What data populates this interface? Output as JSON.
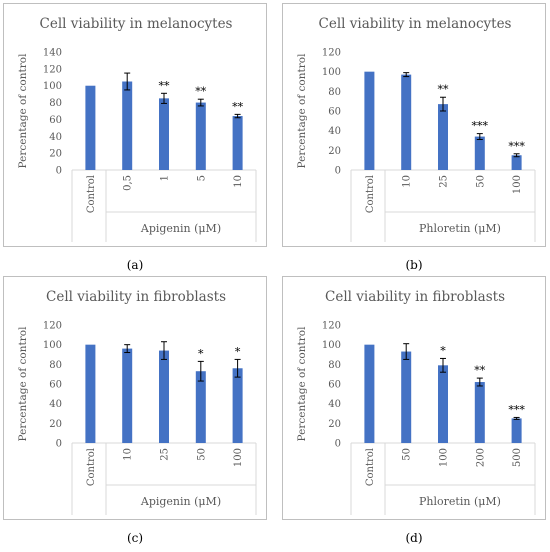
{
  "chart_data": [
    {
      "type": "bar",
      "title": "Cell viability in melanocytes",
      "ylabel": "Percentage of control",
      "xgroup_label": "Apigenin (μM)",
      "control_label": "Control",
      "categories": [
        "Control",
        "0,5",
        "1",
        "5",
        "10"
      ],
      "values": [
        100,
        105,
        85,
        80,
        64
      ],
      "errors": [
        0,
        10,
        6,
        4,
        2
      ],
      "significance": [
        "",
        "",
        "**",
        "**",
        "**"
      ],
      "ylim": [
        0,
        140
      ],
      "yticks": [
        "0",
        "20",
        "40",
        "60",
        "80",
        "100",
        "120",
        "140"
      ],
      "bar_color": "#4472c4",
      "grid": false,
      "caption": "(a)"
    },
    {
      "type": "bar",
      "title": "Cell viability in melanocytes",
      "ylabel": "Percentage of control",
      "xgroup_label": "Phloretin (μM)",
      "control_label": "Control",
      "categories": [
        "Control",
        "10",
        "25",
        "50",
        "100"
      ],
      "values": [
        100,
        97,
        67,
        34,
        15
      ],
      "errors": [
        0,
        2,
        7,
        3,
        1.5
      ],
      "significance": [
        "",
        "",
        "**",
        "***",
        "***"
      ],
      "ylim": [
        0,
        120
      ],
      "yticks": [
        "0",
        "20",
        "40",
        "60",
        "80",
        "100",
        "120"
      ],
      "bar_color": "#4472c4",
      "grid": false,
      "caption": "(b)"
    },
    {
      "type": "bar",
      "title": "Cell viability in fibroblasts",
      "ylabel": "Percentage of control",
      "xgroup_label": "Apigenin (μM)",
      "control_label": "Control",
      "categories": [
        "Control",
        "10",
        "25",
        "50",
        "100"
      ],
      "values": [
        100,
        96,
        94,
        73,
        76
      ],
      "errors": [
        0,
        4,
        9,
        10,
        9
      ],
      "significance": [
        "",
        "",
        "",
        "*",
        "*"
      ],
      "ylim": [
        0,
        120
      ],
      "yticks": [
        "0",
        "20",
        "40",
        "60",
        "80",
        "100",
        "120"
      ],
      "bar_color": "#4472c4",
      "grid": false,
      "caption": "(c)"
    },
    {
      "type": "bar",
      "title": "Cell viability in fibroblasts",
      "ylabel": "Percentage of control",
      "xgroup_label": "Phloretin (μM)",
      "control_label": "Control",
      "categories": [
        "Control",
        "50",
        "100",
        "200",
        "500"
      ],
      "values": [
        100,
        93,
        79,
        62,
        25
      ],
      "errors": [
        0,
        8,
        7,
        4,
        1
      ],
      "significance": [
        "",
        "",
        "*",
        "**",
        "***"
      ],
      "ylim": [
        0,
        120
      ],
      "yticks": [
        "0",
        "20",
        "40",
        "60",
        "80",
        "100",
        "120"
      ],
      "bar_color": "#4472c4",
      "grid": false,
      "caption": "(d)"
    }
  ]
}
